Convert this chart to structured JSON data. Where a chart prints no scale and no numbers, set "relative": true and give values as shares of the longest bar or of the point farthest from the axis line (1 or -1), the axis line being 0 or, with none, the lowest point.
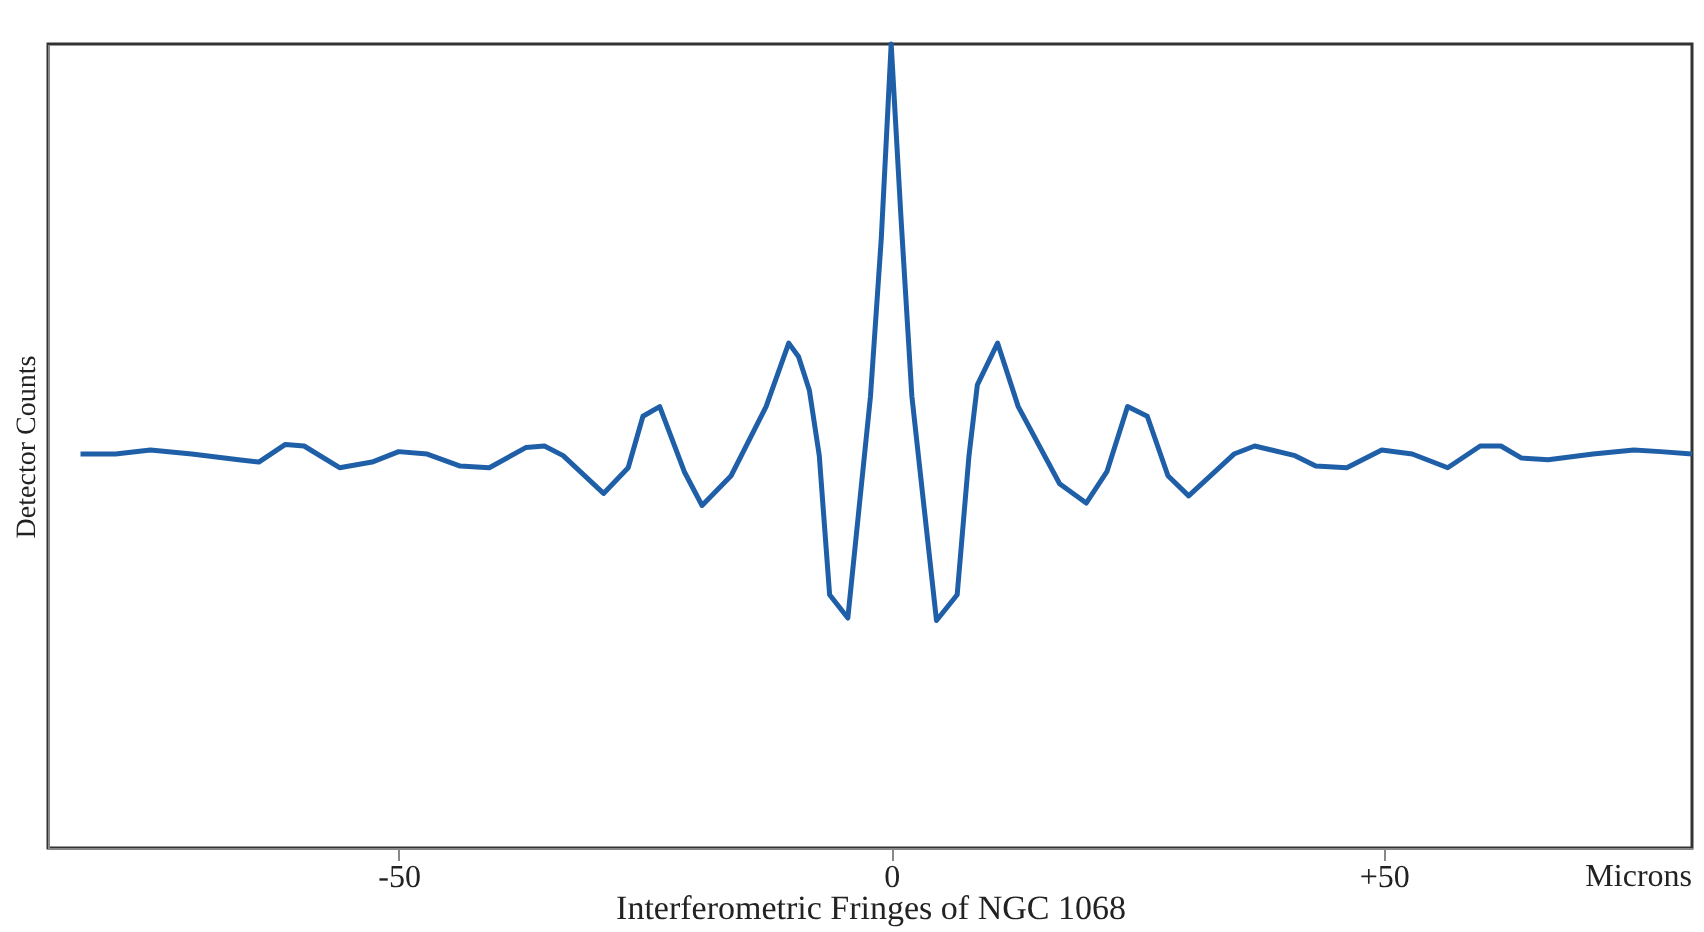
{
  "chart_data": {
    "type": "line",
    "xlabel": "Interferometric Fringes of NGC 1068",
    "ylabel": "Detector Counts",
    "relative": true,
    "x": [
      -82.3,
      -78.75,
      -75.2,
      -71.0,
      -66.25,
      -64.2,
      -61.5,
      -59.6,
      -56.0,
      -52.7,
      -50.0,
      -47.1,
      -43.75,
      -40.8,
      -37.1,
      -35.2,
      -33.3,
      -29.2,
      -26.7,
      -25.2,
      -23.5,
      -21.0,
      -19.2,
      -16.25,
      -12.7,
      -10.4,
      -9.4,
      -8.3,
      -7.3,
      -6.25,
      -4.4,
      -2.1,
      -1.0,
      0,
      1.0,
      2.1,
      4.6,
      6.7,
      7.9,
      8.75,
      10.8,
      12.9,
      17.1,
      19.8,
      21.9,
      24.0,
      26.0,
      28.1,
      30.2,
      34.8,
      36.9,
      41.0,
      43.1,
      46.25,
      49.8,
      52.9,
      56.5,
      59.8,
      61.9,
      64.0,
      66.7,
      71.25,
      75.4,
      78.1,
      81.3
    ],
    "series": [
      {
        "color": "#1f5fa8",
        "values": [
          0.49,
          0.49,
          0.495,
          0.49,
          0.483,
          0.48,
          0.502,
          0.5,
          0.473,
          0.48,
          0.493,
          0.49,
          0.475,
          0.473,
          0.498,
          0.5,
          0.488,
          0.441,
          0.473,
          0.537,
          0.549,
          0.468,
          0.426,
          0.463,
          0.549,
          0.628,
          0.611,
          0.569,
          0.488,
          0.315,
          0.286,
          0.562,
          0.759,
          1,
          0.783,
          0.562,
          0.283,
          0.315,
          0.488,
          0.576,
          0.628,
          0.549,
          0.453,
          0.429,
          0.468,
          0.549,
          0.537,
          0.463,
          0.438,
          0.49,
          0.5,
          0.488,
          0.475,
          0.473,
          0.495,
          0.49,
          0.473,
          0.5,
          0.5,
          0.485,
          0.483,
          0.49,
          0.495,
          0.493,
          0.49
        ]
      }
    ],
    "xlim": [
      -85.6,
      81.3
    ],
    "xticks": [
      {
        "value": -50,
        "label": "-50"
      },
      0,
      {
        "value": 50,
        "label": "+50"
      }
    ],
    "grid": false,
    "marker": "none",
    "line_style": "solid",
    "annotations": [
      "Microns"
    ]
  }
}
